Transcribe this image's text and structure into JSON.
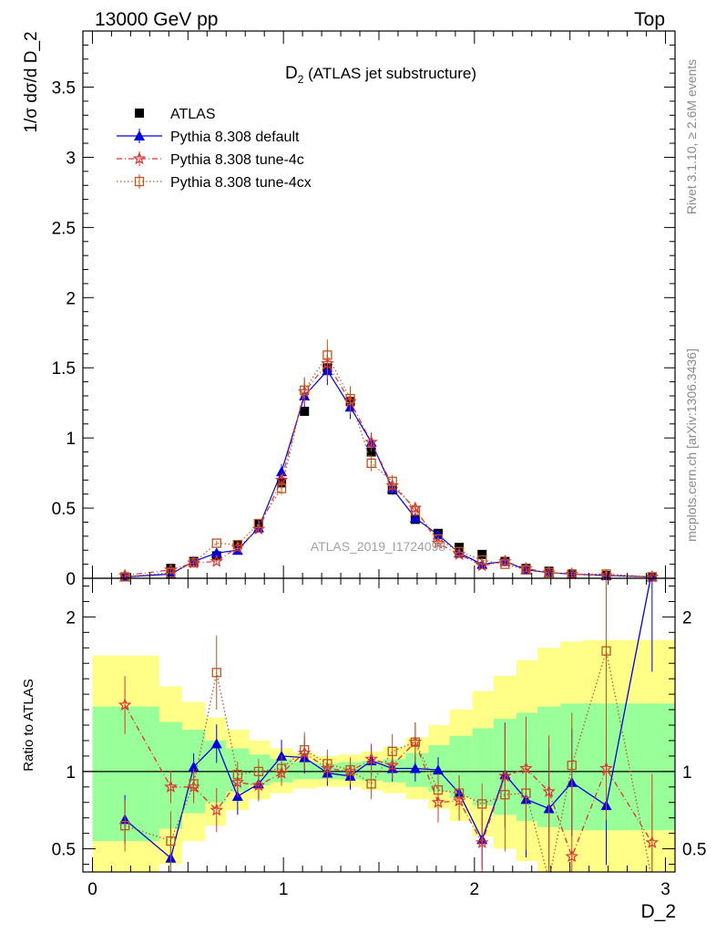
{
  "header": {
    "left": "13000 GeV pp",
    "right": "Top"
  },
  "side_labels": {
    "rivet": "Rivet 3.1.10, ≥ 2.6M events",
    "mcplots": "mcplots.cern.ch [arXiv:1306.3436]"
  },
  "watermark": "ATLAS_2019_I1724098",
  "colors": {
    "data": "#000000",
    "default": "#0000dd",
    "tune4c": "#dd3333",
    "tune4cx": "#bb5522",
    "band_green": "#99ff99",
    "band_yellow": "#ffff88"
  },
  "chart_data": [
    {
      "type": "line",
      "panel": "main",
      "title_main": "D",
      "title_sub": "2",
      "title_rest": " (ATLAS jet substructure)",
      "ylabel": "1/σ dσ/d D_2",
      "ylim": [
        0,
        3.9
      ],
      "yticks": [
        0,
        0.5,
        1,
        1.5,
        2,
        2.5,
        3,
        3.5
      ],
      "ytick_labels": [
        "0",
        "0.5",
        "1",
        "1.5",
        "2",
        "2.5",
        "3",
        "3.5"
      ],
      "xlim": [
        -0.05,
        3.05
      ],
      "x": [
        0.17,
        0.41,
        0.53,
        0.65,
        0.76,
        0.87,
        0.99,
        1.11,
        1.23,
        1.35,
        1.46,
        1.57,
        1.69,
        1.81,
        1.92,
        2.04,
        2.16,
        2.27,
        2.39,
        2.51,
        2.69,
        2.93
      ],
      "legend_position": "top-left",
      "series": [
        {
          "name": "ATLAS",
          "key": "data",
          "marker": "square-filled",
          "values": [
            0.01,
            0.07,
            0.12,
            0.16,
            0.24,
            0.39,
            0.68,
            1.19,
            1.5,
            1.26,
            0.9,
            0.63,
            0.42,
            0.32,
            0.22,
            0.17,
            0.12,
            0.07,
            0.05,
            0.03,
            0.02,
            0.01
          ]
        },
        {
          "name": "Pythia 8.308 default",
          "key": "default",
          "marker": "triangle-filled",
          "values": [
            0.01,
            0.03,
            0.12,
            0.18,
            0.2,
            0.36,
            0.76,
            1.3,
            1.48,
            1.22,
            0.97,
            0.64,
            0.43,
            0.31,
            0.18,
            0.1,
            0.12,
            0.06,
            0.04,
            0.03,
            0.02,
            0.01
          ]
        },
        {
          "name": "Pythia 8.308 tune-4c",
          "key": "tune4c",
          "marker": "star-open",
          "values": [
            0.02,
            0.06,
            0.11,
            0.12,
            0.22,
            0.35,
            0.7,
            1.33,
            1.53,
            1.26,
            0.97,
            0.66,
            0.5,
            0.25,
            0.17,
            0.09,
            0.12,
            0.07,
            0.04,
            0.03,
            0.02,
            0.01
          ]
        },
        {
          "name": "Pythia 8.308 tune-4cx",
          "key": "tune4cx",
          "marker": "square-open",
          "values": [
            0.01,
            0.04,
            0.11,
            0.25,
            0.24,
            0.39,
            0.64,
            1.34,
            1.59,
            1.28,
            0.82,
            0.69,
            0.48,
            0.28,
            0.19,
            0.13,
            0.1,
            0.06,
            0.04,
            0.03,
            0.03,
            0.01
          ]
        }
      ]
    },
    {
      "type": "line",
      "panel": "ratio",
      "ylabel": "Ratio to ATLAS",
      "ylim": [
        0.35,
        2.25
      ],
      "yticks": [
        0.5,
        1,
        2
      ],
      "ytick_labels": [
        "0.5",
        "1",
        "2"
      ],
      "xlim": [
        -0.05,
        3.05
      ],
      "xlabel": "D_2",
      "xticks": [
        0,
        1,
        2,
        3
      ],
      "xtick_labels": [
        "0",
        "1",
        "2",
        "3"
      ],
      "x": [
        0.17,
        0.41,
        0.53,
        0.65,
        0.76,
        0.87,
        0.99,
        1.11,
        1.23,
        1.35,
        1.46,
        1.57,
        1.69,
        1.81,
        1.92,
        2.04,
        2.16,
        2.27,
        2.39,
        2.51,
        2.69,
        2.93
      ],
      "series": [
        {
          "name": "Pythia 8.308 default",
          "key": "default",
          "marker": "triangle-filled",
          "values": [
            0.69,
            0.44,
            1.03,
            1.18,
            0.84,
            0.92,
            1.1,
            1.09,
            0.99,
            0.97,
            1.07,
            1.02,
            1.02,
            1.01,
            0.86,
            0.56,
            0.98,
            0.82,
            0.76,
            0.93,
            0.78,
            2.3
          ]
        },
        {
          "name": "Pythia 8.308 tune-4c",
          "key": "tune4c",
          "marker": "star-open",
          "values": [
            1.43,
            0.9,
            0.9,
            0.75,
            0.93,
            0.91,
            0.99,
            1.12,
            1.02,
            1.0,
            1.08,
            1.04,
            1.19,
            0.8,
            0.81,
            0.54,
            0.97,
            1.02,
            0.87,
            0.45,
            1.02,
            0.54
          ]
        },
        {
          "name": "Pythia 8.308 tune-4cx",
          "key": "tune4cx",
          "marker": "square-open",
          "values": [
            0.65,
            0.55,
            0.92,
            1.64,
            0.98,
            1.0,
            1.02,
            1.14,
            1.05,
            1.01,
            0.92,
            1.13,
            1.19,
            0.88,
            0.86,
            0.79,
            0.85,
            0.86,
            0.3,
            1.04,
            1.78,
            0.3
          ]
        }
      ],
      "bands": {
        "edges": [
          0.0,
          0.35,
          0.47,
          0.59,
          0.7,
          0.82,
          0.93,
          1.05,
          1.17,
          1.29,
          1.41,
          1.52,
          1.64,
          1.76,
          1.87,
          1.99,
          2.1,
          2.22,
          2.33,
          2.45,
          2.57,
          2.81,
          3.05
        ],
        "green": [
          [
            0.55,
            1.42
          ],
          [
            0.63,
            1.32
          ],
          [
            0.73,
            1.27
          ],
          [
            0.8,
            1.2
          ],
          [
            0.87,
            1.15
          ],
          [
            0.91,
            1.11
          ],
          [
            0.93,
            1.08
          ],
          [
            0.95,
            1.06
          ],
          [
            0.95,
            1.05
          ],
          [
            0.95,
            1.06
          ],
          [
            0.94,
            1.07
          ],
          [
            0.93,
            1.08
          ],
          [
            0.9,
            1.12
          ],
          [
            0.87,
            1.17
          ],
          [
            0.83,
            1.23
          ],
          [
            0.78,
            1.28
          ],
          [
            0.72,
            1.34
          ],
          [
            0.68,
            1.38
          ],
          [
            0.64,
            1.42
          ],
          [
            0.62,
            1.44
          ],
          [
            0.62,
            1.44
          ],
          [
            0.62,
            1.44
          ]
        ],
        "yellow": [
          [
            0.3,
            1.75
          ],
          [
            0.4,
            1.55
          ],
          [
            0.55,
            1.45
          ],
          [
            0.65,
            1.35
          ],
          [
            0.75,
            1.27
          ],
          [
            0.82,
            1.2
          ],
          [
            0.86,
            1.15
          ],
          [
            0.89,
            1.12
          ],
          [
            0.9,
            1.1
          ],
          [
            0.9,
            1.11
          ],
          [
            0.88,
            1.13
          ],
          [
            0.86,
            1.16
          ],
          [
            0.82,
            1.22
          ],
          [
            0.76,
            1.3
          ],
          [
            0.68,
            1.4
          ],
          [
            0.58,
            1.52
          ],
          [
            0.5,
            1.62
          ],
          [
            0.42,
            1.72
          ],
          [
            0.35,
            1.8
          ],
          [
            0.3,
            1.84
          ],
          [
            0.3,
            1.85
          ],
          [
            0.3,
            1.85
          ]
        ]
      }
    }
  ]
}
